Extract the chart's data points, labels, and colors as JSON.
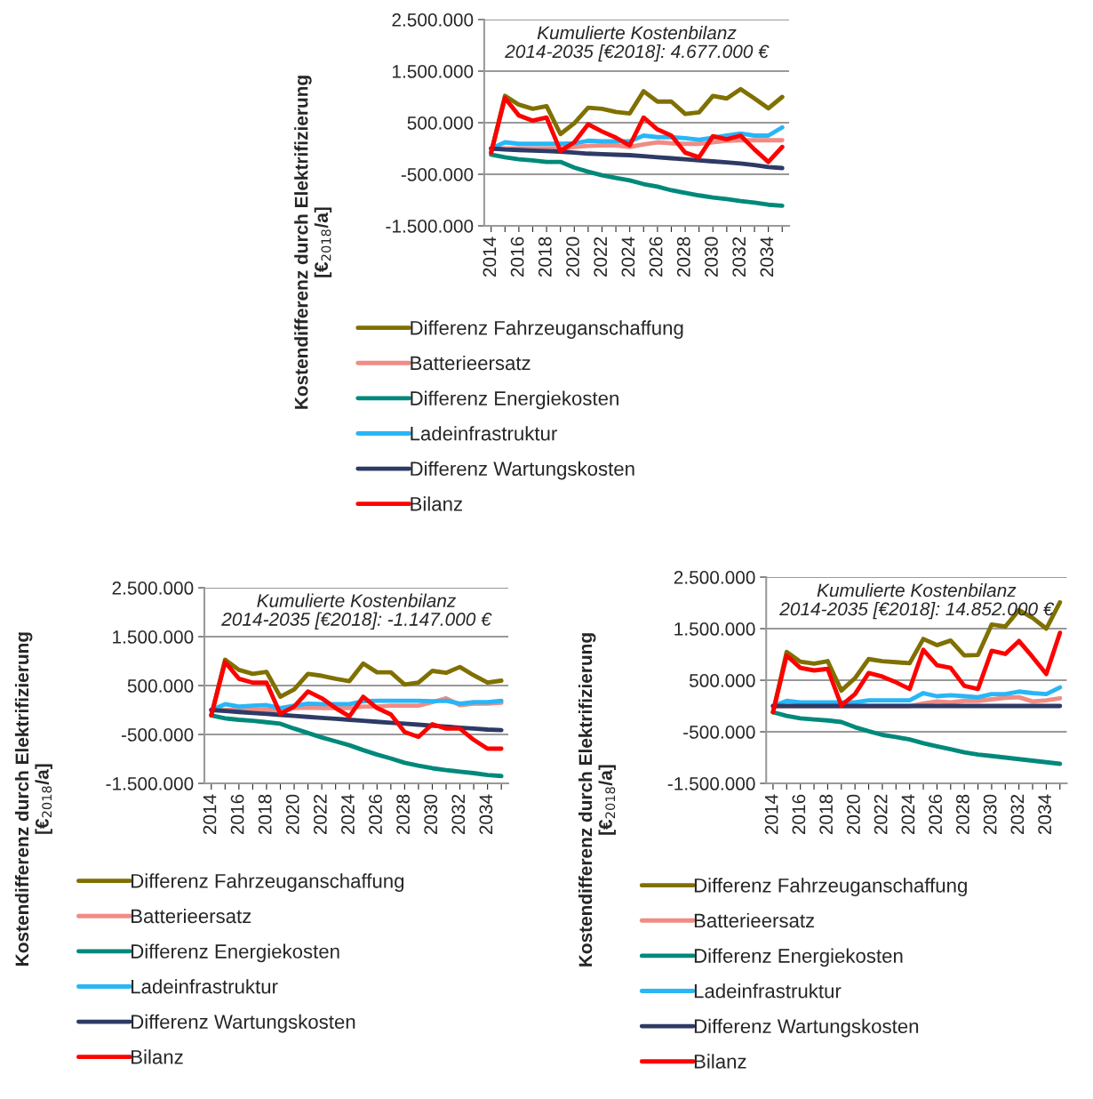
{
  "chart_data": [
    {
      "type": "line",
      "annotations": [
        "Kumulierte Kostenbilanz\n2014-2035 [€2018]: 4.677.000 €"
      ],
      "ylabel": "Kostendifferenz durch Elektrifizierung\n[€$_{2018}$/a]",
      "categories": [
        "2014",
        null,
        "2016",
        null,
        "2018",
        null,
        "2020",
        null,
        "2022",
        null,
        "2024",
        null,
        "2026",
        null,
        "2028",
        null,
        "2030",
        null,
        "2032",
        null,
        "2034",
        null
      ],
      "ylim": [
        -1500000,
        2500000
      ],
      "yticks": [
        {
          "value": -1500000,
          "label": "-1.500.000"
        },
        {
          "value": -500000,
          "label": "-500.000"
        },
        {
          "value": 500000,
          "label": "500.000"
        },
        {
          "value": 1500000,
          "label": "1.500.000"
        },
        {
          "value": 2500000,
          "label": "2.500.000"
        }
      ],
      "grid": "y",
      "legend": "bottom",
      "series": [
        {
          "name": "Differenz Fahrzeuganschaffung",
          "color": "#7f7000",
          "values": [
            -80000,
            1020000,
            850000,
            770000,
            820000,
            280000,
            490000,
            790000,
            770000,
            710000,
            680000,
            1110000,
            910000,
            910000,
            670000,
            700000,
            1020000,
            970000,
            1150000,
            970000,
            780000,
            1000000
          ]
        },
        {
          "name": "Batterieersatz",
          "color": "#f08c84",
          "values": [
            0,
            0,
            0,
            0,
            0,
            0,
            30000,
            50000,
            60000,
            60000,
            30000,
            80000,
            120000,
            100000,
            90000,
            90000,
            120000,
            150000,
            160000,
            160000,
            160000,
            160000
          ]
        },
        {
          "name": "Differenz Energiekosten",
          "color": "#00897b",
          "values": [
            -120000,
            -170000,
            -210000,
            -230000,
            -260000,
            -260000,
            -370000,
            -450000,
            -520000,
            -570000,
            -620000,
            -690000,
            -740000,
            -810000,
            -860000,
            -910000,
            -950000,
            -980000,
            -1020000,
            -1050000,
            -1090000,
            -1110000
          ]
        },
        {
          "name": "Ladeinfrastruktur",
          "color": "#29b6f6",
          "values": [
            0,
            120000,
            90000,
            90000,
            90000,
            90000,
            100000,
            150000,
            140000,
            140000,
            140000,
            250000,
            220000,
            220000,
            200000,
            170000,
            210000,
            250000,
            290000,
            250000,
            250000,
            410000
          ]
        },
        {
          "name": "Differenz Wartungskosten",
          "color": "#2e3a66",
          "values": [
            0,
            -20000,
            -30000,
            -40000,
            -50000,
            -60000,
            -80000,
            -100000,
            -110000,
            -120000,
            -130000,
            -150000,
            -170000,
            -190000,
            -210000,
            -230000,
            -250000,
            -270000,
            -290000,
            -320000,
            -360000,
            -380000
          ]
        },
        {
          "name": "Bilanz",
          "color": "#ff0000",
          "values": [
            -80000,
            980000,
            640000,
            540000,
            600000,
            -50000,
            120000,
            470000,
            330000,
            210000,
            60000,
            600000,
            370000,
            250000,
            -80000,
            -170000,
            240000,
            180000,
            250000,
            -20000,
            -260000,
            30000
          ]
        }
      ]
    },
    {
      "type": "line",
      "annotations": [
        "Kumulierte Kostenbilanz\n2014-2035 [€2018]: -1.147.000 €"
      ],
      "ylabel": "Kostendifferenz durch Elektrifizierung\n[€$_{2018}$/a]",
      "categories": [
        "2014",
        null,
        "2016",
        null,
        "2018",
        null,
        "2020",
        null,
        "2022",
        null,
        "2024",
        null,
        "2026",
        null,
        "2028",
        null,
        "2030",
        null,
        "2032",
        null,
        "2034",
        null
      ],
      "ylim": [
        -1500000,
        2500000
      ],
      "yticks": [
        {
          "value": -1500000,
          "label": "-1.500.000"
        },
        {
          "value": -500000,
          "label": "-500.000"
        },
        {
          "value": 500000,
          "label": "500.000"
        },
        {
          "value": 1500000,
          "label": "1.500.000"
        },
        {
          "value": 2500000,
          "label": "2.500.000"
        }
      ],
      "grid": "y",
      "legend": "bottom",
      "series": [
        {
          "name": "Differenz Fahrzeuganschaffung",
          "color": "#7f7000",
          "values": [
            -110000,
            1030000,
            820000,
            740000,
            780000,
            270000,
            420000,
            740000,
            700000,
            640000,
            590000,
            950000,
            770000,
            770000,
            520000,
            560000,
            800000,
            760000,
            880000,
            710000,
            560000,
            600000
          ]
        },
        {
          "name": "Batterieersatz",
          "color": "#f08c84",
          "values": [
            0,
            0,
            0,
            0,
            0,
            0,
            40000,
            50000,
            40000,
            40000,
            40000,
            70000,
            70000,
            90000,
            90000,
            90000,
            160000,
            240000,
            100000,
            130000,
            130000,
            150000
          ]
        },
        {
          "name": "Differenz Energiekosten",
          "color": "#00897b",
          "values": [
            -110000,
            -170000,
            -200000,
            -220000,
            -250000,
            -280000,
            -380000,
            -470000,
            -560000,
            -640000,
            -720000,
            -820000,
            -910000,
            -990000,
            -1080000,
            -1140000,
            -1190000,
            -1230000,
            -1260000,
            -1290000,
            -1330000,
            -1350000
          ]
        },
        {
          "name": "Ladeinfrastruktur",
          "color": "#29b6f6",
          "values": [
            0,
            120000,
            70000,
            90000,
            100000,
            40000,
            90000,
            130000,
            120000,
            120000,
            120000,
            180000,
            190000,
            190000,
            190000,
            190000,
            180000,
            190000,
            130000,
            160000,
            160000,
            190000
          ]
        },
        {
          "name": "Differenz Wartungskosten",
          "color": "#2e3a66",
          "values": [
            0,
            -20000,
            -40000,
            -60000,
            -80000,
            -100000,
            -120000,
            -140000,
            -160000,
            -180000,
            -200000,
            -220000,
            -240000,
            -260000,
            -280000,
            -300000,
            -320000,
            -340000,
            -360000,
            -380000,
            -400000,
            -410000
          ]
        },
        {
          "name": "Bilanz",
          "color": "#ff0000",
          "values": [
            -110000,
            980000,
            640000,
            560000,
            560000,
            -80000,
            70000,
            380000,
            240000,
            40000,
            -130000,
            270000,
            40000,
            -90000,
            -450000,
            -550000,
            -290000,
            -380000,
            -380000,
            -610000,
            -790000,
            -790000
          ]
        }
      ]
    },
    {
      "type": "line",
      "annotations": [
        "Kumulierte Kostenbilanz\n2014-2035 [€2018]: 14.852.000 €"
      ],
      "ylabel": "Kostendifferenz durch Elektrifizierung\n[€$_{2018}$/a]",
      "categories": [
        "2014",
        null,
        "2016",
        null,
        "2018",
        null,
        "2020",
        null,
        "2022",
        null,
        "2024",
        null,
        "2026",
        null,
        "2028",
        null,
        "2030",
        null,
        "2032",
        null,
        "2034",
        null
      ],
      "ylim": [
        -1500000,
        2500000
      ],
      "yticks": [
        {
          "value": -1500000,
          "label": "-1.500.000"
        },
        {
          "value": -500000,
          "label": "-500.000"
        },
        {
          "value": 500000,
          "label": "500.000"
        },
        {
          "value": 1500000,
          "label": "1.500.000"
        },
        {
          "value": 2500000,
          "label": "2.500.000"
        }
      ],
      "grid": "y",
      "legend": "bottom",
      "series": [
        {
          "name": "Differenz Fahrzeuganschaffung",
          "color": "#7f7000",
          "values": [
            -120000,
            1050000,
            860000,
            820000,
            870000,
            300000,
            540000,
            910000,
            870000,
            850000,
            830000,
            1300000,
            1180000,
            1270000,
            980000,
            990000,
            1580000,
            1540000,
            1860000,
            1710000,
            1500000,
            2010000
          ]
        },
        {
          "name": "Batterieersatz",
          "color": "#f08c84",
          "values": [
            0,
            0,
            0,
            0,
            0,
            0,
            0,
            0,
            0,
            0,
            0,
            50000,
            90000,
            70000,
            100000,
            100000,
            130000,
            160000,
            170000,
            90000,
            110000,
            150000
          ]
        },
        {
          "name": "Differenz Energiekosten",
          "color": "#00897b",
          "values": [
            -120000,
            -190000,
            -240000,
            -260000,
            -280000,
            -310000,
            -410000,
            -490000,
            -560000,
            -600000,
            -650000,
            -720000,
            -780000,
            -840000,
            -900000,
            -940000,
            -970000,
            -1000000,
            -1030000,
            -1060000,
            -1090000,
            -1120000
          ]
        },
        {
          "name": "Ladeinfrastruktur",
          "color": "#29b6f6",
          "values": [
            0,
            100000,
            70000,
            70000,
            70000,
            70000,
            70000,
            110000,
            110000,
            110000,
            110000,
            250000,
            190000,
            210000,
            190000,
            170000,
            230000,
            230000,
            280000,
            250000,
            230000,
            360000
          ]
        },
        {
          "name": "Differenz Wartungskosten",
          "color": "#2e3a66",
          "values": [
            0,
            0,
            0,
            0,
            0,
            0,
            0,
            0,
            0,
            0,
            0,
            0,
            0,
            0,
            0,
            0,
            0,
            0,
            0,
            0,
            0,
            0
          ]
        },
        {
          "name": "Bilanz",
          "color": "#ff0000",
          "values": [
            -120000,
            980000,
            740000,
            690000,
            720000,
            10000,
            230000,
            640000,
            570000,
            460000,
            330000,
            1090000,
            790000,
            740000,
            390000,
            330000,
            1070000,
            1010000,
            1260000,
            950000,
            620000,
            1420000
          ]
        }
      ]
    }
  ]
}
